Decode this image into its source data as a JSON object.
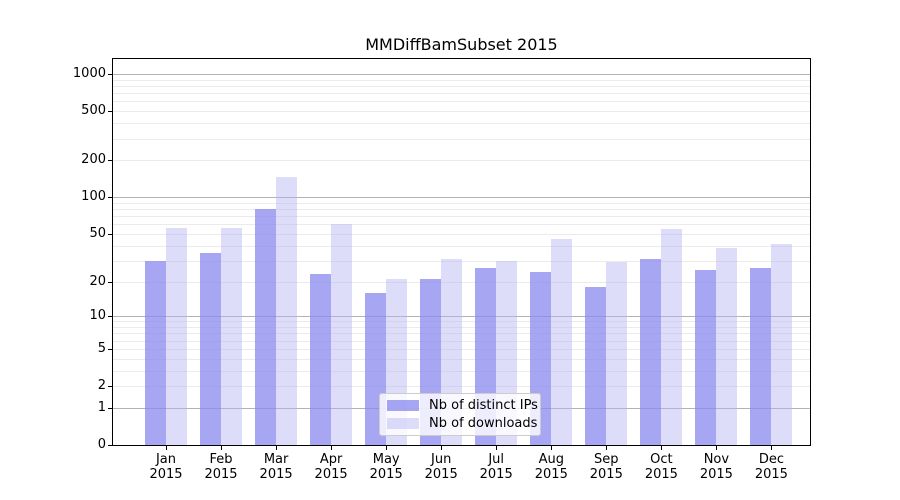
{
  "chart_data": {
    "type": "bar",
    "title": "MMDiffBamSubset 2015",
    "year_label": "2015",
    "categories": [
      "Jan",
      "Feb",
      "Mar",
      "Apr",
      "May",
      "Jun",
      "Jul",
      "Aug",
      "Sep",
      "Oct",
      "Nov",
      "Dec"
    ],
    "series": [
      {
        "name": "Nb of distinct IPs",
        "fill": "#8888ef",
        "alpha": 0.75,
        "values": [
          30,
          35,
          80,
          23,
          16,
          21,
          26,
          24,
          18,
          31,
          25,
          26
        ]
      },
      {
        "name": "Nb of downloads",
        "fill": "#b3b3f4",
        "alpha": 0.45,
        "values": [
          56,
          56,
          147,
          60,
          21,
          31,
          30,
          45,
          29,
          55,
          38,
          41
        ]
      }
    ],
    "y_axis": {
      "scale": "log1p",
      "ticks": [
        0,
        1,
        2,
        5,
        10,
        20,
        50,
        100,
        200,
        500,
        1000
      ],
      "max": 1321
    },
    "grid": {
      "major_color": "#b3b3b3",
      "minor_color": "#ebebeb",
      "major_values": [
        1,
        10,
        100,
        1000
      ],
      "minor_values": [
        2,
        3,
        4,
        5,
        6,
        7,
        8,
        9,
        20,
        30,
        40,
        50,
        60,
        70,
        80,
        90,
        200,
        300,
        400,
        500,
        600,
        700,
        800,
        900
      ]
    },
    "legend": {
      "position": "lower-center"
    }
  }
}
